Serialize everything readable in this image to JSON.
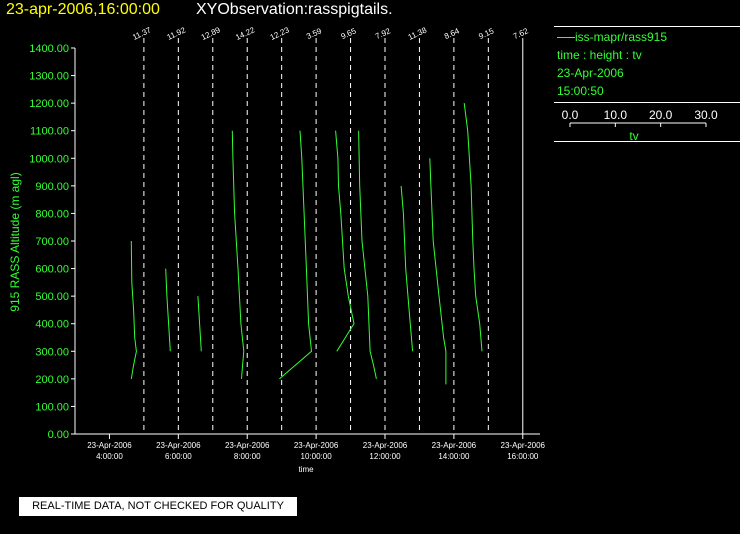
{
  "header": {
    "date_time": "23-apr-2006,16:00:00",
    "observation": "XYObservation:rasspigtails."
  },
  "legend": {
    "series_label": "iss-mapr/rass915",
    "subtitle": "time : height : tv",
    "date": "23-Apr-2006",
    "time": "15:00:50",
    "scale_ticks": [
      "0.0",
      "10.0",
      "20.0",
      "30.0"
    ],
    "scale_label": "tv"
  },
  "footer": {
    "quality_note": "REAL-TIME DATA, NOT CHECKED FOR QUALITY"
  },
  "colors": {
    "series": "#33ff33",
    "axes": "#ffffff",
    "title_date": "#ffff00",
    "background": "#000000"
  },
  "chart_data": {
    "type": "line",
    "xlabel": "time",
    "ylabel": "915 RASS Altitude (m agl)",
    "y_range": [
      0,
      1400
    ],
    "y_ticks": [
      0,
      100,
      200,
      300,
      400,
      500,
      600,
      700,
      800,
      900,
      1000,
      1100,
      1200,
      1300,
      1400
    ],
    "y_tick_labels": [
      "0.00",
      "100.00",
      "200.00",
      "300.00",
      "400.00",
      "500.00",
      "600.00",
      "700.00",
      "800.00",
      "900.00",
      "1000.00",
      "1100.00",
      "1200.00",
      "1300.00",
      "1400.00"
    ],
    "x_range": [
      "2006-04-23T03:00",
      "2006-04-23T16:30"
    ],
    "x_ticks": [
      {
        "time": "2006-04-23T04:00",
        "date_label": "23-Apr-2006",
        "time_label": "4:00:00"
      },
      {
        "time": "2006-04-23T06:00",
        "date_label": "23-Apr-2006",
        "time_label": "6:00:00"
      },
      {
        "time": "2006-04-23T08:00",
        "date_label": "23-Apr-2006",
        "time_label": "8:00:00"
      },
      {
        "time": "2006-04-23T10:00",
        "date_label": "23-Apr-2006",
        "time_label": "10:00:00"
      },
      {
        "time": "2006-04-23T12:00",
        "date_label": "23-Apr-2006",
        "time_label": "12:00:00"
      },
      {
        "time": "2006-04-23T14:00",
        "date_label": "23-Apr-2006",
        "time_label": "14:00:00"
      },
      {
        "time": "2006-04-23T16:00",
        "date_label": "23-Apr-2006",
        "time_label": "16:00:00"
      }
    ],
    "profiles": [
      {
        "time": "2006-04-23T05:00",
        "reference": "11.37",
        "points": [
          [
            -11.0,
            700
          ],
          [
            -10.5,
            550
          ],
          [
            -9.0,
            450
          ],
          [
            -8.0,
            350
          ],
          [
            -6.5,
            300
          ],
          [
            -9.0,
            250
          ],
          [
            -11.0,
            200
          ]
        ]
      },
      {
        "time": "2006-04-23T06:00",
        "reference": "11.92",
        "points": [
          [
            -11.0,
            600
          ],
          [
            -10.0,
            500
          ],
          [
            -8.5,
            400
          ],
          [
            -7.0,
            300
          ]
        ]
      },
      {
        "time": "2006-04-23T07:00",
        "reference": "12.89",
        "points": [
          [
            -13.0,
            500
          ],
          [
            -11.5,
            400
          ],
          [
            -10.0,
            300
          ]
        ]
      },
      {
        "time": "2006-04-23T08:00",
        "reference": "14.22",
        "points": [
          [
            -13.0,
            1100
          ],
          [
            -12.5,
            1000
          ],
          [
            -11.0,
            800
          ],
          [
            -8.0,
            600
          ],
          [
            -5.5,
            400
          ],
          [
            -3.0,
            300
          ],
          [
            -4.0,
            250
          ],
          [
            -5.0,
            200
          ]
        ]
      },
      {
        "time": "2006-04-23T09:00",
        "reference": "12.23",
        "points": []
      },
      {
        "time": "2006-04-23T10:00",
        "reference": "3.59",
        "points": [
          [
            -14.0,
            1100
          ],
          [
            -12.5,
            1000
          ],
          [
            -10.5,
            800
          ],
          [
            -8.5,
            600
          ],
          [
            -6.5,
            400
          ],
          [
            -4.0,
            300
          ],
          [
            -18.0,
            250
          ],
          [
            -32.0,
            200
          ]
        ]
      },
      {
        "time": "2006-04-23T11:00",
        "reference": "9.65",
        "points": [
          [
            -13.0,
            1100
          ],
          [
            -11.0,
            1000
          ],
          [
            -10.5,
            900
          ],
          [
            -8.5,
            800
          ],
          [
            -5.5,
            600
          ],
          [
            -2.0,
            500
          ],
          [
            3.0,
            400
          ],
          [
            -4.5,
            350
          ],
          [
            -12.0,
            300
          ]
        ]
      },
      {
        "time": "2006-04-23T12:00",
        "reference": "7.92",
        "points": [
          [
            -23.0,
            1100
          ],
          [
            -22.0,
            900
          ],
          [
            -20.0,
            700
          ],
          [
            -15.0,
            500
          ],
          [
            -13.0,
            300
          ],
          [
            -10.0,
            250
          ],
          [
            -7.5,
            200
          ]
        ]
      },
      {
        "time": "2006-04-23T13:00",
        "reference": "11.38",
        "points": [
          [
            -16.0,
            900
          ],
          [
            -14.0,
            800
          ],
          [
            -12.0,
            600
          ],
          [
            -9.0,
            450
          ],
          [
            -6.0,
            300
          ]
        ]
      },
      {
        "time": "2006-04-23T14:00",
        "reference": "8.64",
        "points": [
          [
            -21.0,
            1000
          ],
          [
            -20.0,
            900
          ],
          [
            -18.0,
            700
          ],
          [
            -13.0,
            500
          ],
          [
            -9.0,
            350
          ],
          [
            -7.0,
            300
          ],
          [
            -7.0,
            180
          ]
        ]
      },
      {
        "time": "2006-04-23T15:00",
        "reference": "9.15",
        "points": [
          [
            -21.0,
            1200
          ],
          [
            -18.0,
            1100
          ],
          [
            -15.0,
            900
          ],
          [
            -13.5,
            700
          ],
          [
            -12.5,
            600
          ],
          [
            -11.0,
            500
          ],
          [
            -7.5,
            400
          ],
          [
            -5.5,
            300
          ]
        ]
      },
      {
        "time": "2006-04-23T16:00",
        "reference": "7.62",
        "points": []
      }
    ],
    "grid": false,
    "legend_position": "top-right"
  }
}
